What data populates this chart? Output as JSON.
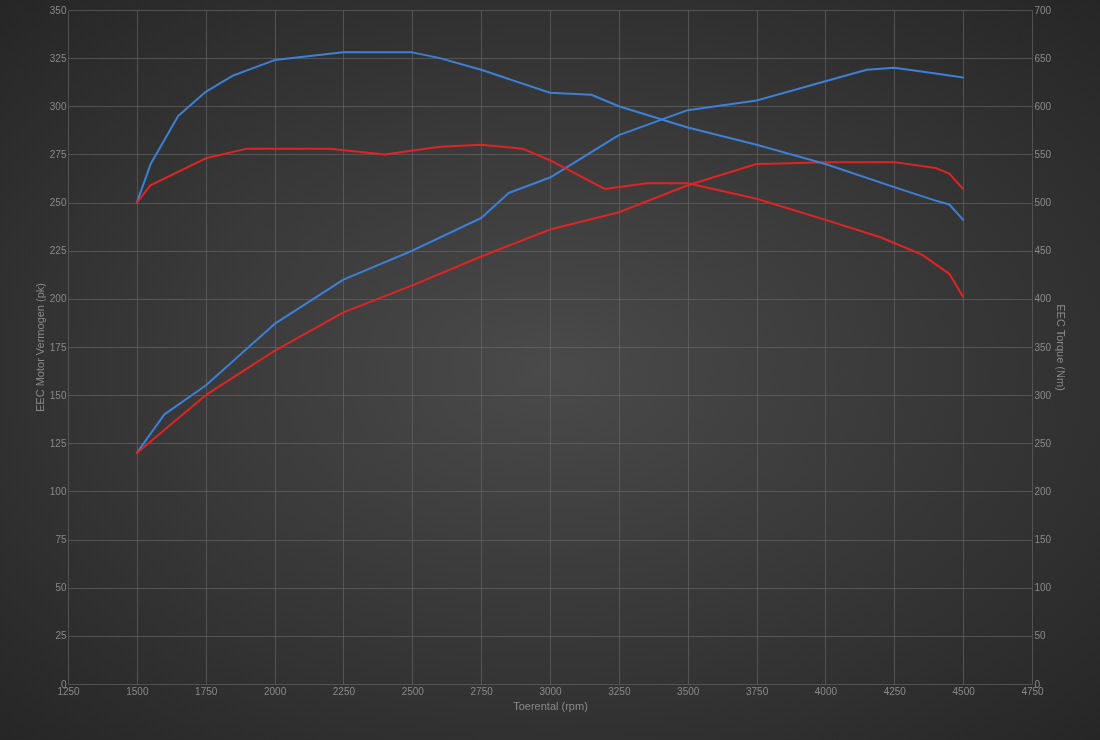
{
  "chart_data": {
    "type": "line",
    "xlabel": "Toerental (rpm)",
    "ylabel": "EEC Motor Vermogen (pk)",
    "y2label": "EEC Torque (Nm)",
    "xlim": [
      1250,
      4750
    ],
    "xticks": [
      1250,
      1500,
      1750,
      2000,
      2250,
      2500,
      2750,
      3000,
      3250,
      3500,
      3750,
      4000,
      4250,
      4500,
      4750
    ],
    "ylim": [
      0,
      350
    ],
    "yticks": [
      0,
      25,
      50,
      75,
      100,
      125,
      150,
      175,
      200,
      225,
      250,
      275,
      300,
      325,
      350
    ],
    "y2lim": [
      0,
      700
    ],
    "y2ticks": [
      0,
      50,
      100,
      150,
      200,
      250,
      300,
      350,
      400,
      450,
      500,
      550,
      600,
      650,
      700
    ],
    "grid": true,
    "series": [
      {
        "color": "#3d80d8",
        "x": [
          1500,
          1600,
          1750,
          2000,
          2250,
          2500,
          2750,
          2850,
          3000,
          3250,
          3500,
          3750,
          4000,
          4150,
          4250,
          4400,
          4500
        ],
        "values": [
          120,
          140,
          155,
          187,
          210,
          225,
          242,
          255,
          263,
          285,
          298,
          303,
          313,
          319,
          320,
          317,
          315
        ]
      },
      {
        "color": "#e02424",
        "x": [
          1500,
          1750,
          2000,
          2250,
          2500,
          2750,
          3000,
          3250,
          3500,
          3750,
          4000,
          4250,
          4400,
          4450,
          4500
        ],
        "values": [
          120,
          150,
          173,
          193,
          207,
          222,
          236,
          245,
          259,
          270,
          271,
          271,
          268,
          265,
          257
        ]
      },
      {
        "color": "#3d80d8",
        "axis": "y2",
        "x": [
          1500,
          1550,
          1650,
          1750,
          1850,
          2000,
          2250,
          2500,
          2600,
          2750,
          3000,
          3150,
          3250,
          3500,
          3750,
          4000,
          4250,
          4400,
          4450,
          4500
        ],
        "values": [
          500,
          540,
          590,
          615,
          632,
          648,
          656,
          656,
          650,
          638,
          614,
          612,
          600,
          578,
          560,
          540,
          516,
          502,
          498,
          482
        ]
      },
      {
        "color": "#e02424",
        "axis": "y2",
        "x": [
          1500,
          1550,
          1750,
          1900,
          2200,
          2400,
          2600,
          2750,
          2900,
          3000,
          3200,
          3350,
          3500,
          3750,
          4000,
          4200,
          4350,
          4450,
          4500
        ],
        "values": [
          500,
          518,
          546,
          556,
          556,
          550,
          558,
          560,
          556,
          544,
          514,
          520,
          520,
          504,
          482,
          464,
          446,
          426,
          402
        ]
      }
    ]
  }
}
